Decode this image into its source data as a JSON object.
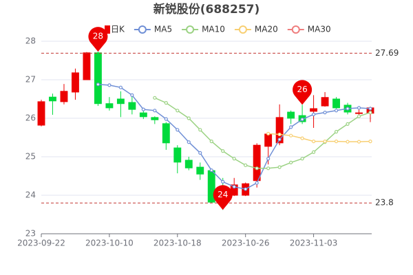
{
  "chart_data": {
    "type": "candlestick",
    "title": "新锐股份(688257)",
    "categories": [
      "2023-09-22",
      null,
      null,
      null,
      null,
      null,
      "2023-10-10",
      null,
      null,
      null,
      null,
      null,
      "2023-10-18",
      null,
      null,
      null,
      null,
      null,
      "2023-10-26",
      null,
      null,
      null,
      null,
      null,
      "2023-11-03",
      null,
      null,
      null,
      null,
      null
    ],
    "ylim": [
      23,
      28
    ],
    "yticks": [
      23,
      24,
      25,
      26,
      27,
      28
    ],
    "grid": true,
    "up_color": "#ec0000",
    "down_color": "#00da3c",
    "candles": {
      "name": "日K",
      "open": [
        25.82,
        26.55,
        26.43,
        26.68,
        27.0,
        27.7,
        26.38,
        26.5,
        26.41,
        26.14,
        26.02,
        25.86,
        25.23,
        24.91,
        24.73,
        24.64,
        24.21,
        24.0,
        24.0,
        24.38,
        25.27,
        25.36,
        26.16,
        26.07,
        26.18,
        26.32,
        26.5,
        26.34,
        26.14,
        26.13
      ],
      "close": [
        26.43,
        26.45,
        26.7,
        27.18,
        27.7,
        26.38,
        26.27,
        26.38,
        26.23,
        26.04,
        25.96,
        25.36,
        24.86,
        24.71,
        24.55,
        23.82,
        24.0,
        24.27,
        24.3,
        25.3,
        25.59,
        26.02,
        26.0,
        25.91,
        26.25,
        26.54,
        26.27,
        26.16,
        26.14,
        26.27
      ],
      "high": [
        26.48,
        26.64,
        26.89,
        27.29,
        27.72,
        27.73,
        26.55,
        26.7,
        26.6,
        26.25,
        26.05,
        25.9,
        25.3,
        25.0,
        24.85,
        24.65,
        24.45,
        24.45,
        24.33,
        25.35,
        25.62,
        26.36,
        26.2,
        26.35,
        26.6,
        26.68,
        26.55,
        26.4,
        26.22,
        26.3
      ],
      "low": [
        25.79,
        26.09,
        26.36,
        26.48,
        27.0,
        26.32,
        26.2,
        26.03,
        26.1,
        25.98,
        25.85,
        25.18,
        24.57,
        24.65,
        24.4,
        23.8,
        23.62,
        23.98,
        23.98,
        24.2,
        24.8,
        25.3,
        25.85,
        25.85,
        25.75,
        26.3,
        26.25,
        26.1,
        26.05,
        25.9
      ]
    },
    "series": [
      {
        "name": "MA5",
        "color": "#6f8fd6",
        "values": [
          null,
          null,
          null,
          null,
          null,
          26.88,
          26.86,
          26.8,
          26.6,
          26.23,
          26.2,
          25.98,
          25.7,
          25.38,
          25.1,
          24.65,
          24.35,
          24.22,
          24.16,
          24.32,
          24.95,
          25.45,
          25.77,
          25.97,
          26.1,
          26.15,
          26.2,
          26.25,
          26.27,
          26.25
        ]
      },
      {
        "name": "MA10",
        "color": "#9bd283",
        "values": [
          null,
          null,
          null,
          null,
          null,
          null,
          null,
          null,
          null,
          null,
          26.53,
          26.4,
          26.2,
          26.0,
          25.7,
          25.4,
          25.15,
          24.95,
          24.78,
          24.7,
          24.7,
          24.73,
          24.85,
          24.95,
          25.12,
          25.38,
          25.65,
          25.85,
          26.05,
          26.15
        ]
      },
      {
        "name": "MA20",
        "color": "#f8cf72",
        "values": [
          null,
          null,
          null,
          null,
          null,
          null,
          null,
          null,
          null,
          null,
          null,
          null,
          null,
          null,
          null,
          null,
          null,
          null,
          null,
          null,
          25.6,
          25.58,
          25.55,
          25.48,
          25.4,
          25.4,
          25.4,
          25.39,
          25.39,
          25.4
        ]
      },
      {
        "name": "MA30",
        "color": "#ef7d7d",
        "values": [
          null,
          null,
          null,
          null,
          null,
          null,
          null,
          null,
          null,
          null,
          null,
          null,
          null,
          null,
          null,
          null,
          null,
          null,
          null,
          null,
          null,
          null,
          null,
          null,
          null,
          null,
          null,
          null,
          null,
          null
        ]
      }
    ],
    "mark_lines": [
      27.69,
      23.8
    ],
    "mark_points": [
      {
        "value": 27.73,
        "label": "28"
      },
      {
        "value": 23.62,
        "label": "24"
      },
      {
        "value": 26.35,
        "label": "26"
      }
    ]
  }
}
